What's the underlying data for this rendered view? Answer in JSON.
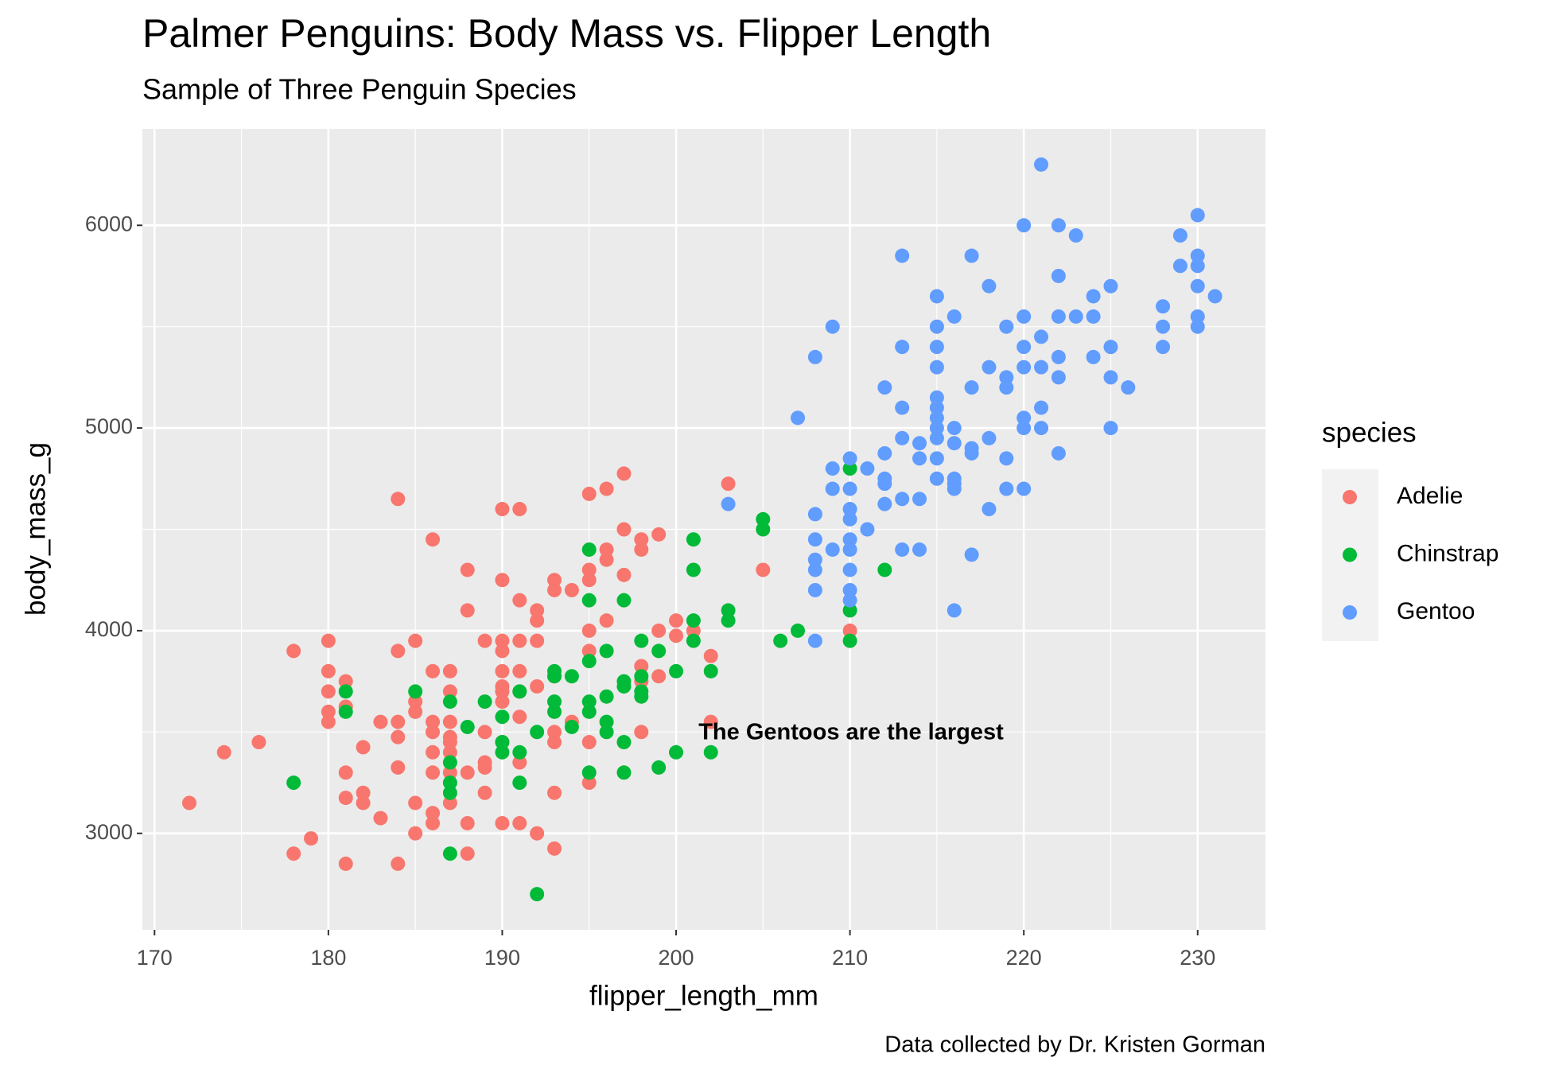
{
  "chart_data": {
    "type": "scatter",
    "title": "Palmer Penguins: Body Mass vs. Flipper Length",
    "subtitle": "Sample of Three Penguin Species",
    "x_label": "flipper_length_mm",
    "y_label": "body_mass_g",
    "caption": "Data collected by Dr. Kristen Gorman",
    "annotation": "The Gentoos are the largest",
    "annotation_color": "#a020f0",
    "legend_title": "species",
    "legend": "right",
    "grid": true,
    "xlim": [
      169.3,
      233.9
    ],
    "ylim": [
      2524,
      6476
    ],
    "xticks": [
      170,
      180,
      190,
      200,
      210,
      220,
      230
    ],
    "yticks": [
      3000,
      4000,
      5000,
      6000
    ],
    "series": [
      {
        "name": "Adelie",
        "color": "#f8766d",
        "x": [
          172,
          174,
          176,
          178,
          178,
          179,
          180,
          180,
          180,
          180,
          180,
          181,
          181,
          181,
          181,
          181,
          182,
          182,
          182,
          183,
          183,
          184,
          184,
          184,
          184,
          184,
          184,
          185,
          185,
          185,
          185,
          185,
          186,
          186,
          186,
          186,
          186,
          186,
          186,
          186,
          187,
          187,
          187,
          187,
          187,
          187,
          187,
          187,
          188,
          188,
          188,
          188,
          188,
          189,
          189,
          189,
          189,
          189,
          190,
          190,
          190,
          190,
          190,
          190,
          190,
          190,
          190,
          190,
          191,
          191,
          191,
          191,
          191,
          191,
          191,
          191,
          192,
          192,
          192,
          192,
          192,
          193,
          193,
          193,
          193,
          193,
          193,
          193,
          194,
          194,
          195,
          195,
          195,
          195,
          195,
          195,
          195,
          196,
          196,
          196,
          196,
          197,
          197,
          197,
          198,
          198,
          198,
          198,
          198,
          199,
          199,
          199,
          200,
          200,
          201,
          202,
          202,
          203,
          205,
          210
        ],
        "y": [
          3150,
          3400,
          3450,
          3900,
          2900,
          2975,
          3950,
          3800,
          3700,
          3600,
          3550,
          3750,
          3625,
          3300,
          3175,
          2850,
          3425,
          3200,
          3150,
          3550,
          3075,
          4650,
          3900,
          3550,
          3475,
          3325,
          2850,
          3950,
          3650,
          3600,
          3150,
          3000,
          4450,
          3800,
          3550,
          3500,
          3400,
          3300,
          3100,
          3050,
          3800,
          3700,
          3550,
          3475,
          3450,
          3400,
          3300,
          3150,
          4300,
          4100,
          3300,
          3050,
          2900,
          3950,
          3500,
          3350,
          3325,
          3200,
          4600,
          4250,
          3950,
          3900,
          3800,
          3725,
          3700,
          3650,
          3450,
          3050,
          4600,
          4150,
          3950,
          3800,
          3700,
          3575,
          3350,
          3050,
          4100,
          4050,
          3950,
          3725,
          3000,
          4250,
          4200,
          3775,
          3500,
          3450,
          3200,
          2925,
          4200,
          3550,
          4675,
          4300,
          4250,
          4000,
          3900,
          3450,
          3250,
          4700,
          4400,
          4350,
          4050,
          4775,
          4500,
          4275,
          4450,
          4400,
          3825,
          3750,
          3500,
          4475,
          4000,
          3775,
          4050,
          3975,
          4000,
          3875,
          3550,
          4725,
          4300,
          4000
        ]
      },
      {
        "name": "Chinstrap",
        "color": "#00ba38",
        "x": [
          178,
          181,
          181,
          185,
          187,
          187,
          187,
          187,
          187,
          188,
          189,
          190,
          190,
          190,
          191,
          191,
          191,
          192,
          192,
          193,
          193,
          193,
          193,
          194,
          194,
          195,
          195,
          195,
          195,
          195,
          195,
          196,
          196,
          196,
          196,
          197,
          197,
          197,
          197,
          197,
          198,
          198,
          198,
          198,
          199,
          199,
          200,
          200,
          201,
          201,
          201,
          201,
          202,
          202,
          203,
          203,
          205,
          205,
          206,
          207,
          210,
          210,
          210,
          212
        ],
        "y": [
          3250,
          3700,
          3600,
          3700,
          3650,
          3350,
          3250,
          3200,
          2900,
          3525,
          3650,
          3575,
          3450,
          3400,
          3700,
          3400,
          3250,
          3500,
          2700,
          3800,
          3775,
          3650,
          3600,
          3775,
          3525,
          4400,
          4150,
          3850,
          3650,
          3600,
          3300,
          3900,
          3675,
          3550,
          3500,
          4150,
          3750,
          3725,
          3450,
          3300,
          3950,
          3775,
          3700,
          3675,
          3900,
          3325,
          3800,
          3400,
          4450,
          4300,
          4050,
          3950,
          3800,
          3400,
          4100,
          4050,
          4550,
          4500,
          3950,
          4000,
          4800,
          4100,
          3950,
          4300
        ]
      },
      {
        "name": "Gentoo",
        "color": "#619cff",
        "x": [
          203,
          207,
          208,
          208,
          208,
          208,
          208,
          208,
          208,
          209,
          209,
          209,
          209,
          210,
          210,
          210,
          210,
          210,
          210,
          210,
          210,
          210,
          211,
          211,
          212,
          212,
          212,
          212,
          212,
          213,
          213,
          213,
          213,
          213,
          213,
          214,
          214,
          214,
          214,
          215,
          215,
          215,
          215,
          215,
          215,
          215,
          215,
          215,
          215,
          215,
          216,
          216,
          216,
          216,
          216,
          216,
          216,
          217,
          217,
          217,
          217,
          217,
          218,
          218,
          218,
          218,
          219,
          219,
          219,
          219,
          219,
          220,
          220,
          220,
          220,
          220,
          220,
          220,
          221,
          221,
          221,
          221,
          221,
          222,
          222,
          222,
          222,
          222,
          222,
          223,
          223,
          224,
          224,
          224,
          225,
          225,
          225,
          225,
          226,
          228,
          228,
          228,
          229,
          229,
          230,
          230,
          230,
          230,
          230,
          230,
          231
        ],
        "y": [
          4625,
          5050,
          5350,
          4575,
          4450,
          4350,
          4300,
          4200,
          3950,
          5500,
          4800,
          4700,
          4400,
          4850,
          4700,
          4600,
          4550,
          4450,
          4400,
          4300,
          4200,
          4150,
          4800,
          4500,
          5200,
          4875,
          4750,
          4725,
          4625,
          5850,
          5400,
          5100,
          4950,
          4650,
          4400,
          4925,
          4850,
          4650,
          4400,
          5650,
          5500,
          5400,
          5300,
          5150,
          5100,
          5050,
          5000,
          4950,
          4850,
          4750,
          5550,
          5000,
          4925,
          4750,
          4725,
          4700,
          4100,
          5850,
          5200,
          4900,
          4875,
          4375,
          5700,
          5300,
          4950,
          4600,
          5500,
          5250,
          5200,
          4850,
          4700,
          6000,
          5550,
          5400,
          5300,
          5050,
          5000,
          4700,
          6300,
          5450,
          5300,
          5100,
          5000,
          6000,
          5750,
          5550,
          5350,
          5250,
          4875,
          5950,
          5550,
          5650,
          5550,
          5350,
          5700,
          5400,
          5250,
          5000,
          5200,
          5600,
          5500,
          5400,
          5950,
          5800,
          6050,
          5850,
          5800,
          5700,
          5550,
          5500,
          5650
        ]
      }
    ]
  }
}
